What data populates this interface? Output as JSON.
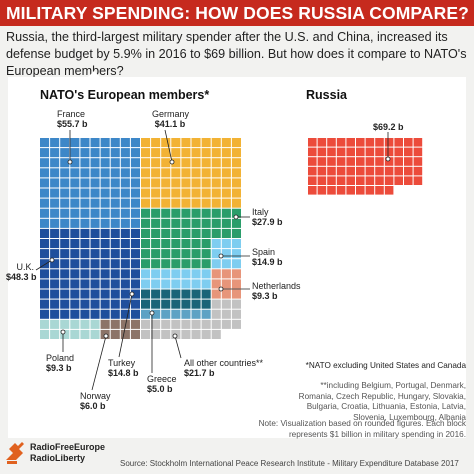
{
  "header": {
    "title": "MILITARY SPENDING: HOW DOES RUSSIA COMPARE?"
  },
  "subtitle": "Russia, the third-largest military spender after the U.S. and China, increased its defense budget by 5.9% in 2016 to $69 billion. But how does it compare to NATO's European members?",
  "chart_data": {
    "type": "treemap",
    "unit": "$ billion",
    "groups": [
      {
        "title": "NATO's European members*",
        "items": [
          {
            "name": "France",
            "value_label": "$55.7 b",
            "value": 55.7,
            "color": "#3d87c8"
          },
          {
            "name": "Germany",
            "value_label": "$41.1 b",
            "value": 41.1,
            "color": "#f2b234"
          },
          {
            "name": "Italy",
            "value_label": "$27.9 b",
            "value": 27.9,
            "color": "#2a9d6a"
          },
          {
            "name": "Spain",
            "value_label": "$14.9 b",
            "value": 14.9,
            "color": "#7ecdf0"
          },
          {
            "name": "U.K.",
            "value_label": "$48.3 b",
            "value": 48.3,
            "color": "#1f4f9c"
          },
          {
            "name": "Netherlands",
            "value_label": "$9.3 b",
            "value": 9.3,
            "color": "#e7957a"
          },
          {
            "name": "Poland",
            "value_label": "$9.3 b",
            "value": 9.3,
            "color": "#a9d7d4"
          },
          {
            "name": "Norway",
            "value_label": "$6.0 b",
            "value": 6.0,
            "color": "#8c7468"
          },
          {
            "name": "Turkey",
            "value_label": "$14.8 b",
            "value": 14.8,
            "color": "#1a6478"
          },
          {
            "name": "Greece",
            "value_label": "$5.0 b",
            "value": 5.0,
            "color": "#5da2c4"
          },
          {
            "name": "All other countries**",
            "value_label": "$21.7 b",
            "value": 21.7,
            "color": "#c2c2c2"
          }
        ]
      },
      {
        "title": "Russia",
        "items": [
          {
            "name": "",
            "value_label": "$69.2 b",
            "value": 69.2,
            "color": "#ec4b3b"
          }
        ]
      }
    ]
  },
  "notes": {
    "nato_note": "*NATO excluding United States and Canada",
    "others_note": "**including Belgium, Portugal, Denmark, Romania, Czech Republic, Hungary, Slovakia, Bulgaria, Croatia, Lithuania, Estonia, Latvia, Slovenia, Luxembourg, Albania",
    "viz_note": "Note: Visualization based on rounded figures. Each block represents $1 billion in military spending in 2016."
  },
  "footer": {
    "source": "Source:  Stockholm International Peace Research Institute - Military Expenditure Database 2017"
  },
  "logo": {
    "line1": "RadioFreeEurope",
    "line2": "RadioLiberty"
  }
}
